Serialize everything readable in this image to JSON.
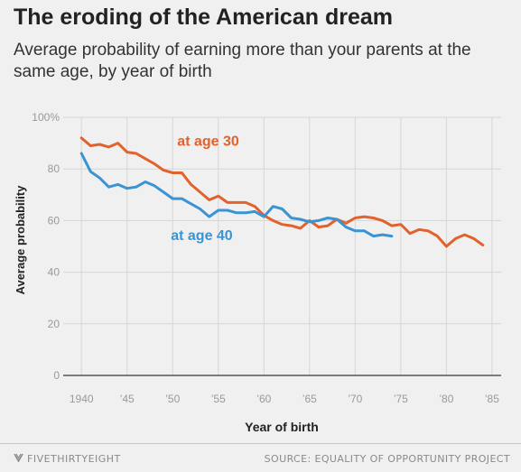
{
  "title": "The eroding of the American dream",
  "subtitle": "Average probability of earning more than your parents at the same age, by year of birth",
  "footer": {
    "brand": "FIVETHIRTYEIGHT",
    "brand_icon": "fivethirtyeight-logo-icon",
    "source": "SOURCE: EQUALITY OF OPPORTUNITY PROJECT"
  },
  "colors": {
    "age30": "#e1622c",
    "age40": "#3a93d3",
    "grid": "#d6d6d6",
    "background": "#f0f0f0"
  },
  "chart_data": {
    "type": "line",
    "xlabel": "Year of birth",
    "ylabel": "Average probability",
    "xlim": [
      1938,
      1986
    ],
    "ylim": [
      0,
      100
    ],
    "grid": true,
    "x_ticks": [
      1940,
      1945,
      1950,
      1955,
      1960,
      1965,
      1970,
      1975,
      1980,
      1985
    ],
    "x_tick_labels": [
      "1940",
      "’45",
      "’50",
      "’55",
      "’60",
      "’65",
      "’70",
      "’75",
      "’80",
      "’85"
    ],
    "y_ticks": [
      0,
      20,
      40,
      60,
      80,
      100
    ],
    "y_tick_labels": [
      "0",
      "20",
      "40",
      "60",
      "80",
      "100%"
    ],
    "series": [
      {
        "name": "at age 30",
        "color": "#e1622c",
        "x": [
          1940,
          1941,
          1942,
          1943,
          1944,
          1945,
          1946,
          1947,
          1948,
          1949,
          1950,
          1951,
          1952,
          1953,
          1954,
          1955,
          1956,
          1957,
          1958,
          1959,
          1960,
          1961,
          1962,
          1963,
          1964,
          1965,
          1966,
          1967,
          1968,
          1969,
          1970,
          1971,
          1972,
          1973,
          1974,
          1975,
          1976,
          1977,
          1978,
          1979,
          1980,
          1981,
          1982,
          1983,
          1984
        ],
        "values": [
          92,
          89,
          89.5,
          88.5,
          90,
          86.5,
          86,
          84,
          82,
          79.5,
          78.5,
          78.5,
          74,
          71,
          68,
          69.5,
          67,
          67,
          67,
          65.5,
          62,
          60,
          58.5,
          58,
          57,
          60,
          57.5,
          58,
          60.5,
          59,
          61,
          61.5,
          61,
          60,
          58,
          58.5,
          55,
          56.5,
          56,
          54,
          50,
          53,
          54.5,
          53,
          50.5
        ]
      },
      {
        "name": "at age 40",
        "color": "#3a93d3",
        "x": [
          1940,
          1941,
          1942,
          1943,
          1944,
          1945,
          1946,
          1947,
          1948,
          1949,
          1950,
          1951,
          1952,
          1953,
          1954,
          1955,
          1956,
          1957,
          1958,
          1959,
          1960,
          1961,
          1962,
          1963,
          1964,
          1965,
          1966,
          1967,
          1968,
          1969,
          1970,
          1971,
          1972,
          1973,
          1974
        ],
        "values": [
          86,
          79,
          76.5,
          73,
          74,
          72.5,
          73,
          75,
          73.5,
          71,
          68.5,
          68.5,
          66.5,
          64.5,
          61.5,
          64,
          64,
          63,
          63,
          63.5,
          61.5,
          65.5,
          64.5,
          61,
          60.5,
          59.5,
          60,
          61,
          60.5,
          57.5,
          56,
          56,
          54,
          54.5,
          54
        ]
      }
    ],
    "annotations": [
      {
        "text": "at age 30",
        "series": "at age 30",
        "x": 1950.5,
        "y": 89
      },
      {
        "text": "at age 40",
        "series": "at age 40",
        "x": 1949.8,
        "y": 52.5
      }
    ]
  }
}
